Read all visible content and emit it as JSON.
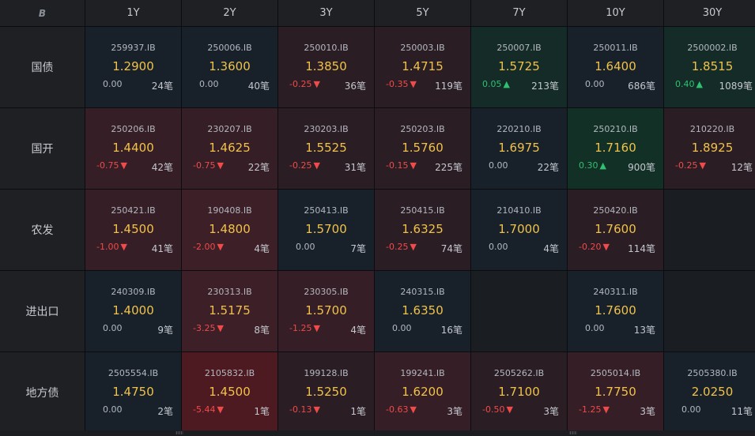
{
  "header": {
    "logo_glyph": "B",
    "tenors": [
      "1Y",
      "2Y",
      "3Y",
      "5Y",
      "7Y",
      "10Y",
      "30Y"
    ]
  },
  "rows": [
    {
      "label": "国债",
      "cells": [
        {
          "code": "259937.IB",
          "yield": "1.2900",
          "change": "0.00",
          "arrow": "",
          "volume": "24笔",
          "tone": "t-neu",
          "dir": "neu"
        },
        {
          "code": "250006.IB",
          "yield": "1.3600",
          "change": "0.00",
          "arrow": "",
          "volume": "40笔",
          "tone": "t-neu",
          "dir": "neu"
        },
        {
          "code": "250010.IB",
          "yield": "1.3850",
          "change": "-0.25",
          "arrow": "▼",
          "volume": "36笔",
          "tone": "t-r1",
          "dir": "neg"
        },
        {
          "code": "250003.IB",
          "yield": "1.4715",
          "change": "-0.35",
          "arrow": "▼",
          "volume": "119笔",
          "tone": "t-r1",
          "dir": "neg"
        },
        {
          "code": "250007.IB",
          "yield": "1.5725",
          "change": "0.05",
          "arrow": "▲",
          "volume": "213笔",
          "tone": "t-g1",
          "dir": "pos"
        },
        {
          "code": "250011.IB",
          "yield": "1.6400",
          "change": "0.00",
          "arrow": "",
          "volume": "686笔",
          "tone": "t-neu",
          "dir": "neu"
        },
        {
          "code": "2500002.IB",
          "yield": "1.8515",
          "change": "0.40",
          "arrow": "▲",
          "volume": "1089笔",
          "tone": "t-g1",
          "dir": "pos"
        }
      ]
    },
    {
      "label": "国开",
      "cells": [
        {
          "code": "250206.IB",
          "yield": "1.4400",
          "change": "-0.75",
          "arrow": "▼",
          "volume": "42笔",
          "tone": "t-r2",
          "dir": "neg"
        },
        {
          "code": "230207.IB",
          "yield": "1.4625",
          "change": "-0.75",
          "arrow": "▼",
          "volume": "22笔",
          "tone": "t-r2",
          "dir": "neg"
        },
        {
          "code": "230203.IB",
          "yield": "1.5525",
          "change": "-0.25",
          "arrow": "▼",
          "volume": "31笔",
          "tone": "t-r1",
          "dir": "neg"
        },
        {
          "code": "250203.IB",
          "yield": "1.5760",
          "change": "-0.15",
          "arrow": "▼",
          "volume": "225笔",
          "tone": "t-r1",
          "dir": "neg"
        },
        {
          "code": "220210.IB",
          "yield": "1.6975",
          "change": "0.00",
          "arrow": "",
          "volume": "22笔",
          "tone": "t-neu",
          "dir": "neu"
        },
        {
          "code": "250210.IB",
          "yield": "1.7160",
          "change": "0.30",
          "arrow": "▲",
          "volume": "900笔",
          "tone": "t-g2",
          "dir": "pos"
        },
        {
          "code": "210220.IB",
          "yield": "1.8925",
          "change": "-0.25",
          "arrow": "▼",
          "volume": "12笔",
          "tone": "t-r1",
          "dir": "neg"
        }
      ]
    },
    {
      "label": "农发",
      "cells": [
        {
          "code": "250421.IB",
          "yield": "1.4500",
          "change": "-1.00",
          "arrow": "▼",
          "volume": "41笔",
          "tone": "t-r2",
          "dir": "neg"
        },
        {
          "code": "190408.IB",
          "yield": "1.4800",
          "change": "-2.00",
          "arrow": "▼",
          "volume": "4笔",
          "tone": "t-r3",
          "dir": "neg"
        },
        {
          "code": "250413.IB",
          "yield": "1.5700",
          "change": "0.00",
          "arrow": "",
          "volume": "7笔",
          "tone": "t-neu",
          "dir": "neu"
        },
        {
          "code": "250415.IB",
          "yield": "1.6325",
          "change": "-0.25",
          "arrow": "▼",
          "volume": "74笔",
          "tone": "t-r1",
          "dir": "neg"
        },
        {
          "code": "210410.IB",
          "yield": "1.7000",
          "change": "0.00",
          "arrow": "",
          "volume": "4笔",
          "tone": "t-neu",
          "dir": "neu"
        },
        {
          "code": "250420.IB",
          "yield": "1.7600",
          "change": "-0.20",
          "arrow": "▼",
          "volume": "114笔",
          "tone": "t-r1",
          "dir": "neg"
        },
        null
      ]
    },
    {
      "label": "进出口",
      "cells": [
        {
          "code": "240309.IB",
          "yield": "1.4000",
          "change": "0.00",
          "arrow": "",
          "volume": "9笔",
          "tone": "t-neu",
          "dir": "neu"
        },
        {
          "code": "230313.IB",
          "yield": "1.5175",
          "change": "-3.25",
          "arrow": "▼",
          "volume": "8笔",
          "tone": "t-r3",
          "dir": "neg"
        },
        {
          "code": "230305.IB",
          "yield": "1.5700",
          "change": "-1.25",
          "arrow": "▼",
          "volume": "4笔",
          "tone": "t-r2",
          "dir": "neg"
        },
        {
          "code": "240315.IB",
          "yield": "1.6350",
          "change": "0.00",
          "arrow": "",
          "volume": "16笔",
          "tone": "t-neu",
          "dir": "neu"
        },
        null,
        {
          "code": "240311.IB",
          "yield": "1.7600",
          "change": "0.00",
          "arrow": "",
          "volume": "13笔",
          "tone": "t-neu",
          "dir": "neu"
        },
        null
      ]
    },
    {
      "label": "地方债",
      "cells": [
        {
          "code": "2505554.IB",
          "yield": "1.4750",
          "change": "0.00",
          "arrow": "",
          "volume": "2笔",
          "tone": "t-neu",
          "dir": "neu"
        },
        {
          "code": "2105832.IB",
          "yield": "1.4500",
          "change": "-5.44",
          "arrow": "▼",
          "volume": "1笔",
          "tone": "t-r4",
          "dir": "neg"
        },
        {
          "code": "199128.IB",
          "yield": "1.5250",
          "change": "-0.13",
          "arrow": "▼",
          "volume": "1笔",
          "tone": "t-r1",
          "dir": "neg"
        },
        {
          "code": "199241.IB",
          "yield": "1.6200",
          "change": "-0.63",
          "arrow": "▼",
          "volume": "3笔",
          "tone": "t-r2",
          "dir": "neg"
        },
        {
          "code": "2505262.IB",
          "yield": "1.7100",
          "change": "-0.50",
          "arrow": "▼",
          "volume": "3笔",
          "tone": "t-r1",
          "dir": "neg"
        },
        {
          "code": "2505014.IB",
          "yield": "1.7750",
          "change": "-1.25",
          "arrow": "▼",
          "volume": "3笔",
          "tone": "t-r2",
          "dir": "neg"
        },
        {
          "code": "2505380.IB",
          "yield": "2.0250",
          "change": "0.00",
          "arrow": "",
          "volume": "11笔",
          "tone": "t-neu",
          "dir": "neu"
        }
      ]
    }
  ],
  "colors": {
    "yield": "#f0c24b",
    "down": "#f04a4a",
    "up": "#2fc16f",
    "neutral": "#b4b8bf"
  }
}
